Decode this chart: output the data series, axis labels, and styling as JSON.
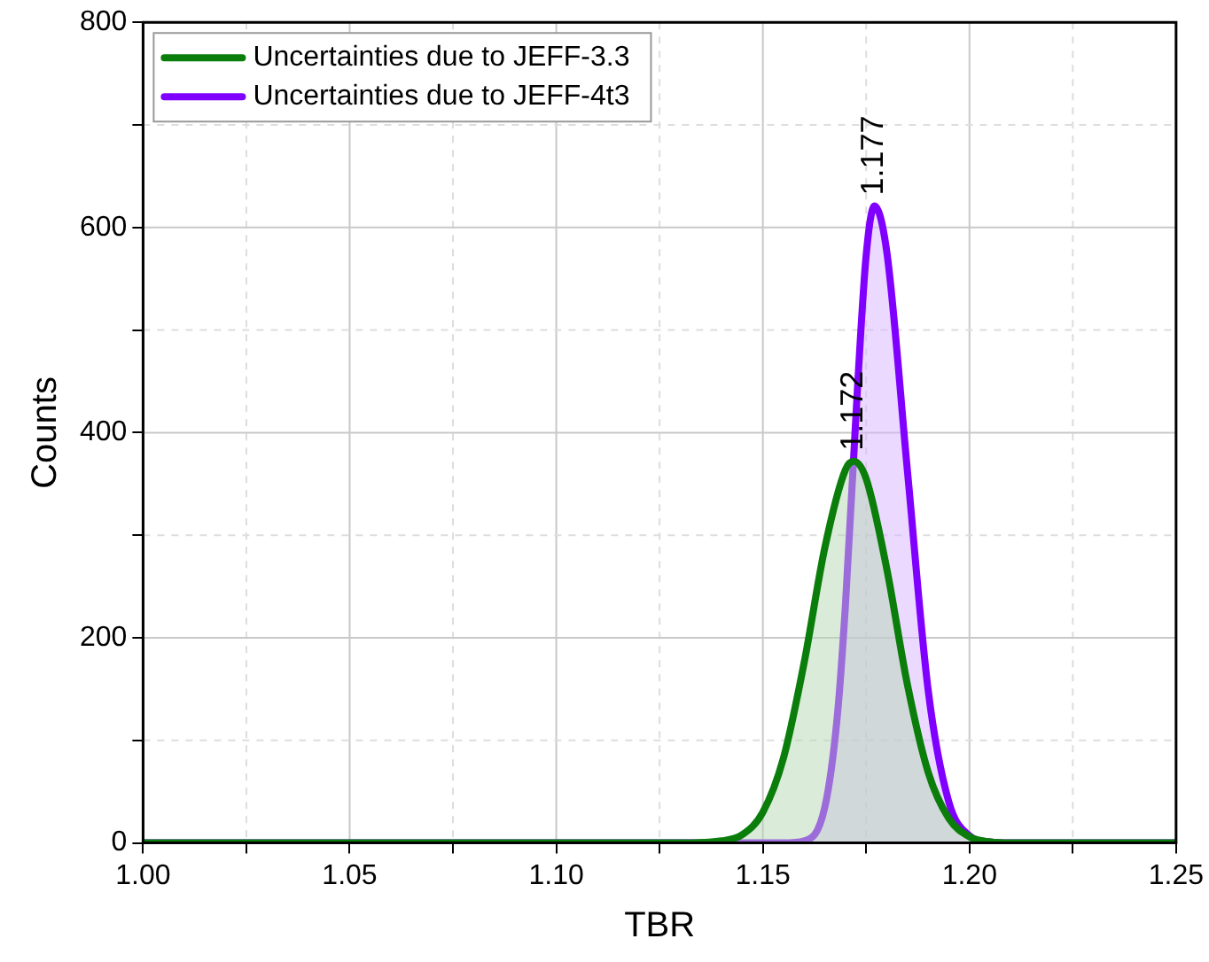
{
  "chart_data": {
    "type": "area",
    "xlabel": "TBR",
    "ylabel": "Counts",
    "xlim": [
      1.0,
      1.25
    ],
    "ylim": [
      0,
      800
    ],
    "xticks": [
      {
        "value": 1.0,
        "label": "1.00"
      },
      {
        "value": 1.025,
        "label": null
      },
      {
        "value": 1.05,
        "label": "1.05"
      },
      {
        "value": 1.075,
        "label": null
      },
      {
        "value": 1.1,
        "label": "1.10"
      },
      {
        "value": 1.125,
        "label": null
      },
      {
        "value": 1.15,
        "label": "1.15"
      },
      {
        "value": 1.175,
        "label": null
      },
      {
        "value": 1.2,
        "label": "1.20"
      },
      {
        "value": 1.225,
        "label": null
      },
      {
        "value": 1.25,
        "label": "1.25"
      }
    ],
    "yticks": [
      0,
      {
        "value": 100,
        "label": null
      },
      200,
      {
        "value": 300,
        "label": null
      },
      400,
      {
        "value": 500,
        "label": null
      },
      600,
      {
        "value": 700,
        "label": null
      },
      800
    ],
    "grid": true,
    "legend": "top left",
    "marker": "none",
    "line_style": "solid",
    "series": [
      {
        "name": "Uncertainties due to JEFF-3.3",
        "color": "#0a7d0a",
        "x": [
          1.0,
          1.13,
          1.14,
          1.145,
          1.15,
          1.155,
          1.16,
          1.165,
          1.17,
          1.172,
          1.175,
          1.18,
          1.185,
          1.19,
          1.195,
          1.2,
          1.205,
          1.21,
          1.25
        ],
        "values": [
          0,
          0,
          2,
          8,
          30,
          83,
          176,
          288,
          364,
          372,
          355,
          267,
          154,
          69,
          24,
          6,
          1,
          0,
          0
        ]
      },
      {
        "name": "Uncertainties due to JEFF-4t3",
        "color": "#8000ff",
        "x": [
          1.0,
          1.155,
          1.16,
          1.165,
          1.168,
          1.17,
          1.173,
          1.175,
          1.177,
          1.18,
          1.185,
          1.19,
          1.195,
          1.2,
          1.205,
          1.21,
          1.25
        ],
        "values": [
          0,
          0,
          2,
          35,
          123,
          233,
          451,
          573,
          621,
          576,
          362,
          149,
          40,
          7,
          1,
          0,
          0
        ]
      }
    ],
    "annotations": [
      {
        "text": "1.172",
        "x": 1.172,
        "y": 372
      },
      {
        "text": "1.177",
        "x": 1.177,
        "y": 621
      }
    ]
  }
}
